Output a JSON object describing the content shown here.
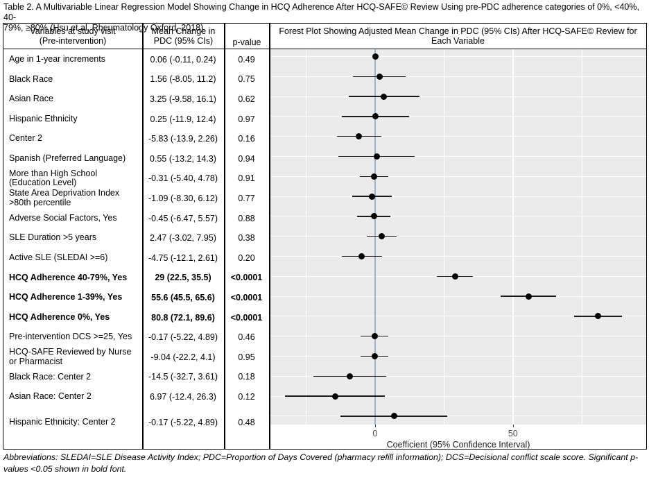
{
  "title": "Table 2. A Multivariable Linear Regression Model Showing Change in HCQ Adherence After HCQ-SAFE© Review Using pre-PDC adherence categories of 0%, <40%, 40-\n79%, ≥80% (Hsu et al, Rheumatology Oxford, 2018)",
  "footnote": "Abbreviations: SLEDAI=SLE Disease Activity Index; PDC=Proportion of Days Covered (pharmacy refill information); DCS=Decisional conflict scale score. Significant p-values <0.05 shown in bold font.",
  "table": {
    "headers": {
      "variables": "Variables at study visit\n(Pre-intervention)",
      "mean_change": "Mean Change in\nPDC (95% CIs)",
      "p_value": "p-value",
      "forest_plot": "Forest Plot Showing Adjusted Mean Change in PDC (95% CIs) After HCQ-SAFE© Review for Each Variable"
    },
    "rows": [
      {
        "variable": "Age in 1-year increments",
        "mean": "0.06 (-0.11, 0.24)",
        "p": "0.49",
        "bold": false
      },
      {
        "variable": "Black Race",
        "mean": "1.56 (-8.05, 11.2)",
        "p": "0.75",
        "bold": false
      },
      {
        "variable": "Asian Race",
        "mean": "3.25 (-9.58, 16.1)",
        "p": "0.62",
        "bold": false
      },
      {
        "variable": "Hispanic Ethnicity",
        "mean": "0.25 (-11.9, 12.4)",
        "p": "0.97",
        "bold": false
      },
      {
        "variable": "Center 2",
        "mean": "-5.83 (-13.9, 2.26)",
        "p": "0.16",
        "bold": false
      },
      {
        "variable": "Spanish (Preferred Language)",
        "mean": "0.55 (-13.2, 14.3)",
        "p": "0.94",
        "bold": false
      },
      {
        "variable": "More than High School (Education Level)",
        "mean": "-0.31 (-5.40, 4.78)",
        "p": "0.91",
        "bold": false
      },
      {
        "variable": "State Area Deprivation Index >80th percentile",
        "mean": "-1.09 (-8.30, 6.12)",
        "p": "0.77",
        "bold": false
      },
      {
        "variable": "Adverse Social Factors, Yes",
        "mean": "-0.45 (-6.47, 5.57)",
        "p": "0.88",
        "bold": false
      },
      {
        "variable": "SLE Duration >5 years",
        "mean": "2.47 (-3.02, 7.95)",
        "p": "0.38",
        "bold": false
      },
      {
        "variable": "Active SLE (SLEDAI >=6)",
        "mean": "-4.75 (-12.1, 2.61)",
        "p": "0.20",
        "bold": false
      },
      {
        "variable": "HCQ Adherence 40-79%, Yes",
        "mean": "29 (22.5, 35.5)",
        "p": "<0.0001",
        "bold": true
      },
      {
        "variable": "HCQ Adherence 1-39%, Yes",
        "mean": "55.6 (45.5, 65.6)",
        "p": "<0.0001",
        "bold": true
      },
      {
        "variable": "HCQ Adherence 0%, Yes",
        "mean": "80.8 (72.1, 89.6)",
        "p": "<0.0001",
        "bold": true
      },
      {
        "variable": "Pre-intervention DCS >=25, Yes",
        "mean": "-0.17 (-5.22, 4.89)",
        "p": "0.46",
        "bold": false
      },
      {
        "variable": "HCQ-SAFE Reviewed by Nurse or Pharmacist",
        "mean": "-9.04 (-22.2, 4.1)",
        "p": "0.95",
        "bold": false
      },
      {
        "variable": "Black Race: Center 2",
        "mean": "-14.5 (-32.7, 3.61)",
        "p": "0.18",
        "bold": false
      },
      {
        "variable": "Asian Race: Center 2",
        "mean": "6.97 (-12.4, 26.3)",
        "p": "0.12",
        "bold": false
      },
      {
        "variable": "Hispanic Ethnicity: Center 2",
        "mean": "-0.17 (-5.22, 4.89)",
        "p": "0.48",
        "bold": false
      }
    ]
  },
  "chart_data": {
    "type": "scatter",
    "subtype": "forest",
    "title": "Forest Plot Showing Adjusted Mean Change in PDC (95% CIs) After HCQ-SAFE© Review for Each Variable",
    "xlabel": "Coefficient (95% Confidence Interval)",
    "xlim": [
      -37.9,
      98.3
    ],
    "xticks": [
      0,
      50
    ],
    "xtick_labels": [
      "0",
      "50"
    ],
    "minor_gridlines": [
      -25,
      25,
      75
    ],
    "major_gridlines": [
      0,
      50
    ],
    "zero_reference_line": 0,
    "legend": "none",
    "grid": "on",
    "colors": {
      "panel_bg": "#ebebeb",
      "gridline": "#ffffff",
      "zero_line": "#9cb2c8",
      "point": "#000000",
      "ci_line": "#1a1a1a"
    },
    "points_top_to_bottom": [
      {
        "label": "Age in 1-year increments",
        "mean": 0.06,
        "lo": -0.11,
        "hi": 0.24
      },
      {
        "label": "Black Race",
        "mean": 1.56,
        "lo": -8.05,
        "hi": 11.2
      },
      {
        "label": "Asian Race",
        "mean": 3.25,
        "lo": -9.58,
        "hi": 16.1
      },
      {
        "label": "Hispanic Ethnicity",
        "mean": 0.25,
        "lo": -11.9,
        "hi": 12.4
      },
      {
        "label": "Center 2",
        "mean": -5.83,
        "lo": -13.9,
        "hi": 2.26
      },
      {
        "label": "Spanish (Preferred Language)",
        "mean": 0.55,
        "lo": -13.2,
        "hi": 14.3
      },
      {
        "label": "More than High School (Education Level)",
        "mean": -0.31,
        "lo": -5.4,
        "hi": 4.78
      },
      {
        "label": "State Area Deprivation Index >80th percentile",
        "mean": -1.09,
        "lo": -8.3,
        "hi": 6.12
      },
      {
        "label": "Adverse Social Factors, Yes",
        "mean": -0.45,
        "lo": -6.47,
        "hi": 5.57
      },
      {
        "label": "SLE Duration >5 years",
        "mean": 2.47,
        "lo": -3.02,
        "hi": 7.95
      },
      {
        "label": "Active SLE (SLEDAI >=6)",
        "mean": -4.75,
        "lo": -12.1,
        "hi": 2.61
      },
      {
        "label": "HCQ Adherence 40-79%, Yes",
        "mean": 29,
        "lo": 22.5,
        "hi": 35.5
      },
      {
        "label": "HCQ Adherence 1-39%, Yes",
        "mean": 55.6,
        "lo": 45.5,
        "hi": 65.6
      },
      {
        "label": "HCQ Adherence 0%, Yes",
        "mean": 80.8,
        "lo": 72.1,
        "hi": 89.6
      },
      {
        "label": "Pre-intervention DCS >=25, Yes",
        "mean": -0.17,
        "lo": -5.22,
        "hi": 4.89
      },
      {
        "label": "Hispanic Ethnicity: Center 2",
        "mean": -0.17,
        "lo": -5.22,
        "hi": 4.89
      },
      {
        "label": "HCQ-SAFE Reviewed by Nurse or Pharmacist",
        "mean": -9.04,
        "lo": -22.2,
        "hi": 4.1
      },
      {
        "label": "Black Race: Center 2",
        "mean": -14.5,
        "lo": -32.7,
        "hi": 3.61
      },
      {
        "label": "Asian Race: Center 2",
        "mean": 6.97,
        "lo": -12.4,
        "hi": 26.3
      }
    ]
  }
}
